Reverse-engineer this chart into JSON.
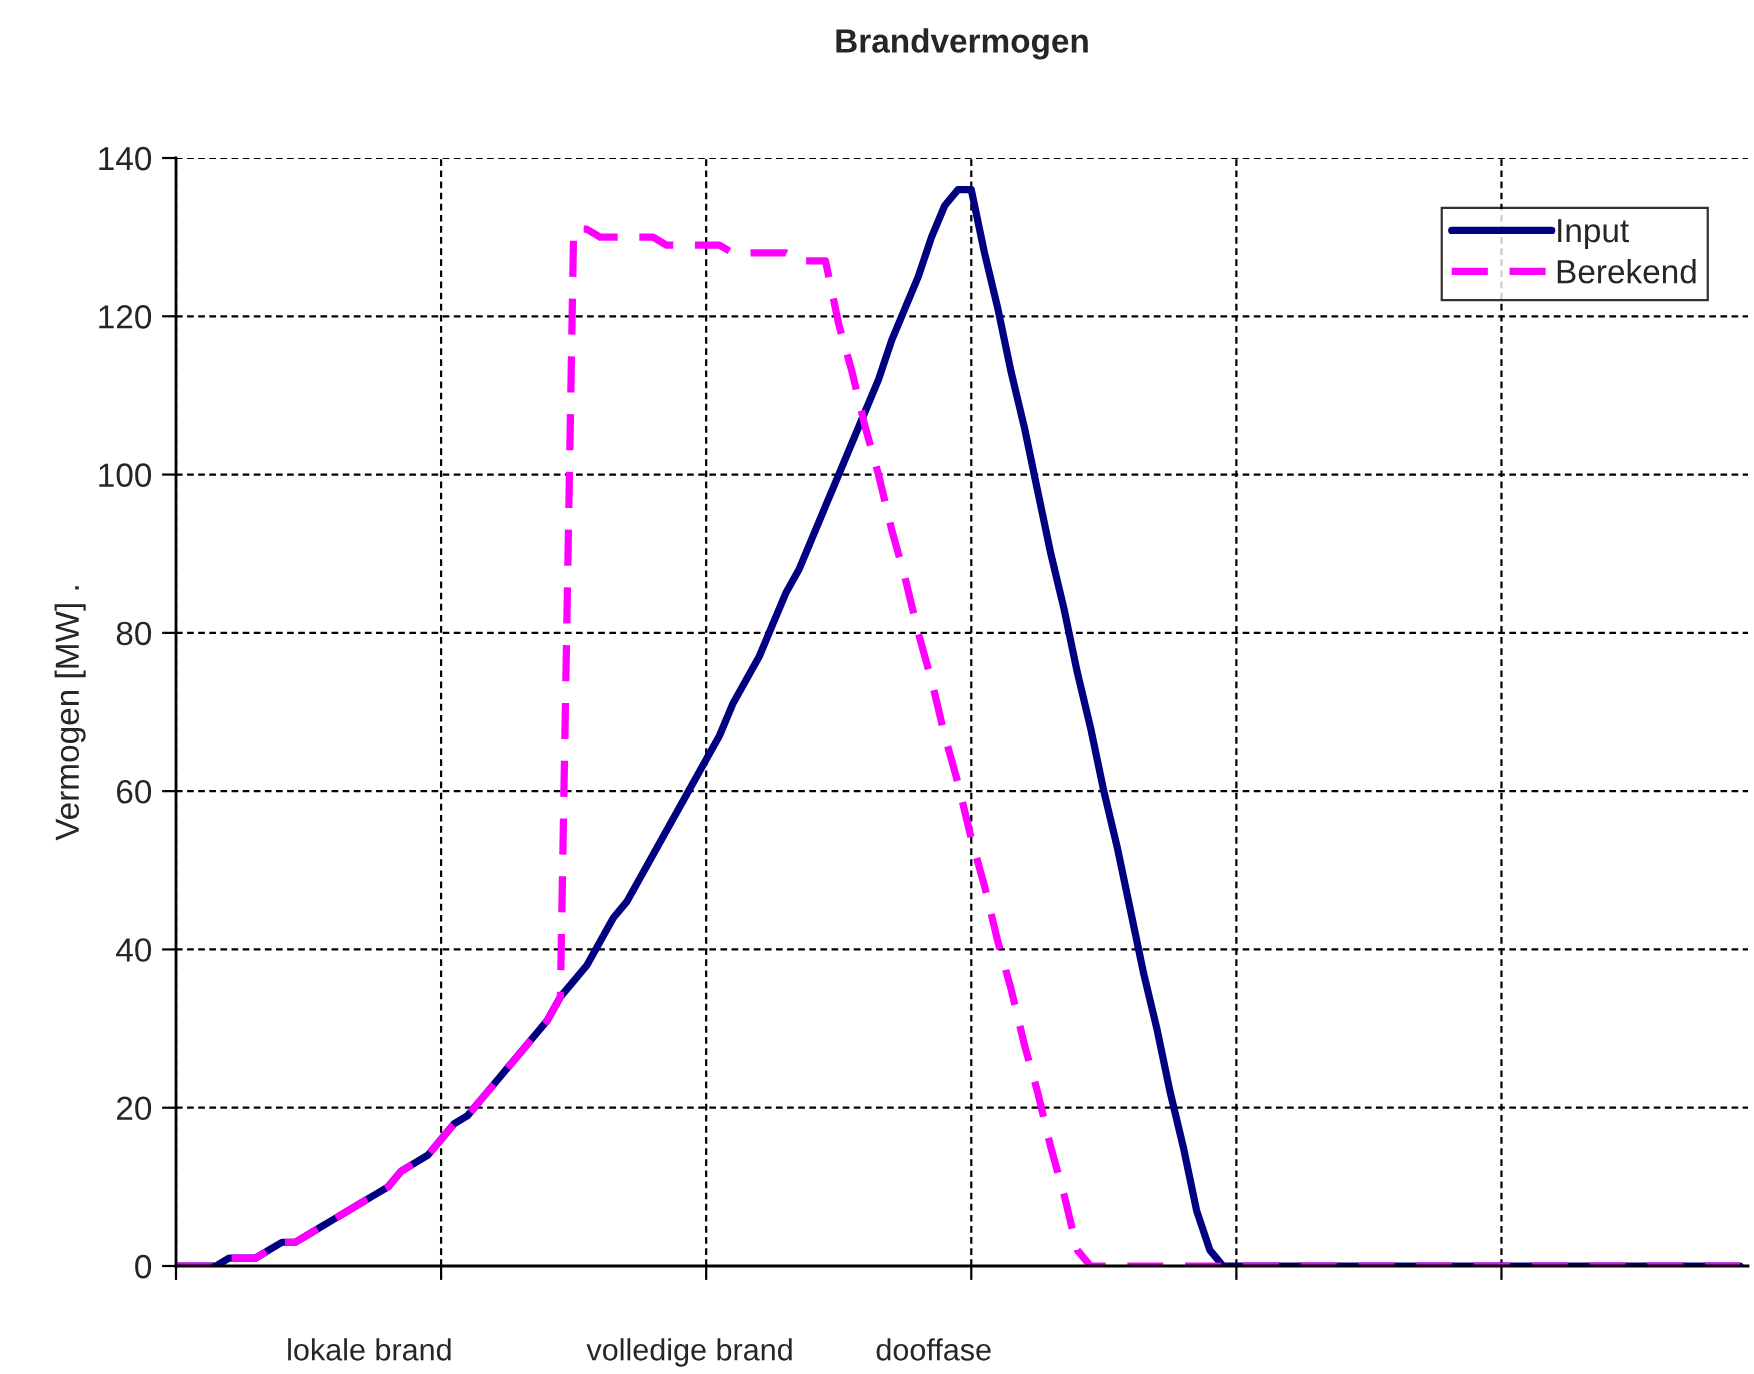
{
  "chart_data": {
    "type": "line",
    "title": "Brandvermogen",
    "ylabel": "Vermogen [MW] .",
    "categories": [
      null,
      null,
      null,
      null,
      null,
      null,
      null,
      null,
      null,
      null,
      null,
      null,
      null,
      null,
      null,
      null,
      null,
      null,
      null,
      null,
      null,
      null,
      null,
      null,
      null,
      null,
      null,
      null,
      null,
      null,
      null,
      null,
      null,
      null,
      null,
      null,
      null,
      null,
      null,
      null,
      null,
      null,
      null,
      null,
      null,
      null,
      null,
      null,
      null,
      null,
      null,
      null,
      null,
      null,
      null,
      null,
      null,
      null,
      null,
      null,
      null,
      null,
      null,
      null,
      null,
      null,
      null,
      null,
      null,
      null,
      null,
      null,
      null,
      null,
      null,
      null,
      null,
      null,
      null,
      null,
      null,
      null,
      null,
      null,
      null,
      null,
      null,
      null,
      null,
      null,
      null,
      null,
      null,
      null,
      null,
      null,
      null,
      null,
      null,
      null,
      null,
      null,
      null,
      null,
      null,
      null,
      null,
      null,
      null,
      null,
      null,
      null,
      null,
      null,
      null,
      null,
      null,
      null,
      null
    ],
    "ylim": [
      0,
      140
    ],
    "yticks": [
      0,
      20,
      40,
      60,
      80,
      100,
      120,
      140
    ],
    "tick_labels": "y",
    "grid": true,
    "legend": "top right",
    "series": [
      {
        "name": "Input",
        "color": "#000080",
        "line_style": "solid",
        "values": [
          0,
          0,
          0,
          0,
          1,
          1,
          1,
          2,
          3,
          3,
          4,
          5,
          6,
          7,
          8,
          9,
          10,
          12,
          13,
          14,
          16,
          18,
          19,
          21,
          23,
          25,
          27,
          29,
          31,
          34,
          36,
          38,
          41,
          44,
          46,
          49,
          52,
          55,
          58,
          61,
          64,
          67,
          71,
          74,
          77,
          81,
          85,
          88,
          92,
          96,
          100,
          104,
          108,
          112,
          117,
          121,
          125,
          130,
          134,
          136,
          136,
          128,
          121,
          113,
          106,
          98,
          90,
          83,
          75,
          68,
          60,
          53,
          45,
          37,
          30,
          22,
          15,
          7,
          2,
          0,
          0,
          0,
          0,
          0,
          0,
          0,
          0,
          0,
          0,
          0,
          0,
          0,
          0,
          0,
          0,
          0,
          0,
          0,
          0,
          0,
          0,
          0,
          0,
          0,
          0,
          0,
          0,
          0,
          0,
          0,
          0,
          0,
          0,
          0,
          0,
          0,
          0,
          0,
          0
        ]
      },
      {
        "name": "Berekend",
        "color": "#ff00ff",
        "line_style": "dashed",
        "values": [
          0,
          0,
          0,
          0,
          1,
          1,
          1,
          2,
          3,
          3,
          4,
          5,
          6,
          7,
          8,
          9,
          10,
          12,
          13,
          14,
          16,
          18,
          19,
          21,
          23,
          25,
          27,
          29,
          31,
          34,
          131,
          131,
          130,
          130,
          130,
          130,
          130,
          129,
          129,
          129,
          129,
          129,
          128,
          128,
          128,
          128,
          128,
          127,
          127,
          127,
          119,
          113,
          106,
          100,
          93,
          87,
          80,
          74,
          67,
          61,
          54,
          48,
          41,
          35,
          28,
          22,
          15,
          9,
          2,
          0,
          0,
          0,
          0,
          0,
          0,
          0,
          0,
          0,
          0,
          0,
          0,
          0,
          0,
          0,
          0,
          0,
          0,
          0,
          0,
          0,
          0,
          0,
          0,
          0,
          0,
          0,
          0,
          0,
          0,
          0,
          0,
          0,
          0,
          0,
          0,
          0,
          0,
          0,
          0,
          0,
          0,
          0,
          0,
          0,
          0,
          0,
          0,
          0,
          0
        ]
      }
    ],
    "annotations": [
      "lokale brand",
      "volledige brand",
      "dooffase"
    ]
  }
}
